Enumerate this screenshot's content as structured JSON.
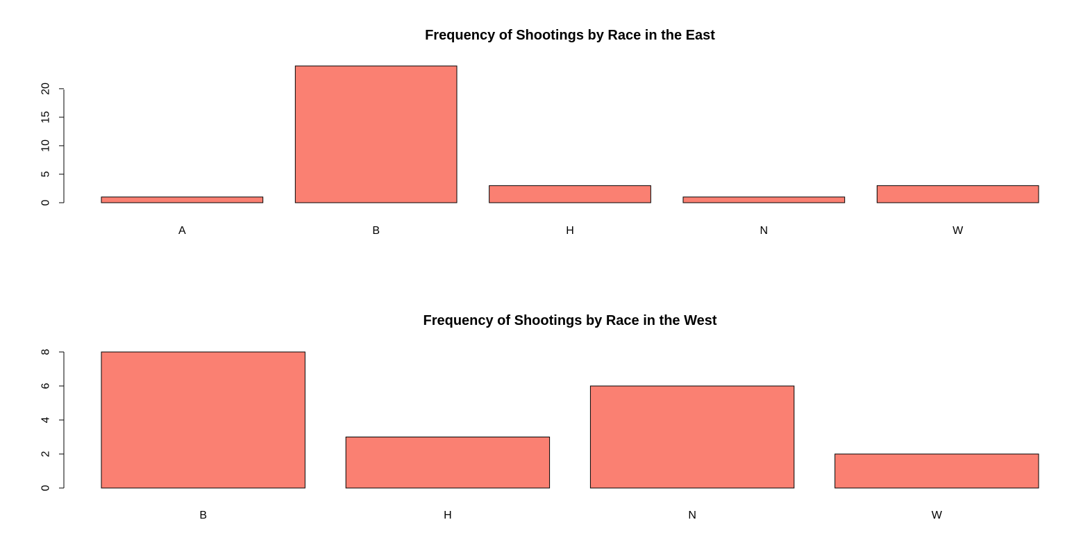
{
  "chart_data": [
    {
      "type": "bar",
      "title": "Frequency of Shootings by Race in the East",
      "xlabel": "",
      "ylabel": "",
      "categories": [
        "A",
        "B",
        "H",
        "N",
        "W"
      ],
      "values": [
        1,
        24,
        3,
        1,
        3
      ],
      "ylim": [
        0,
        24
      ],
      "yticks": [
        0,
        5,
        10,
        15,
        20
      ],
      "bar_color": "#FA8072",
      "grid": false,
      "legend": "none"
    },
    {
      "type": "bar",
      "title": "Frequency of Shootings by Race in the West",
      "xlabel": "",
      "ylabel": "",
      "categories": [
        "B",
        "H",
        "N",
        "W"
      ],
      "values": [
        8,
        3,
        6,
        2
      ],
      "ylim": [
        0,
        8
      ],
      "yticks": [
        0,
        2,
        4,
        6,
        8
      ],
      "bar_color": "#FA8072",
      "grid": false,
      "legend": "none"
    }
  ]
}
